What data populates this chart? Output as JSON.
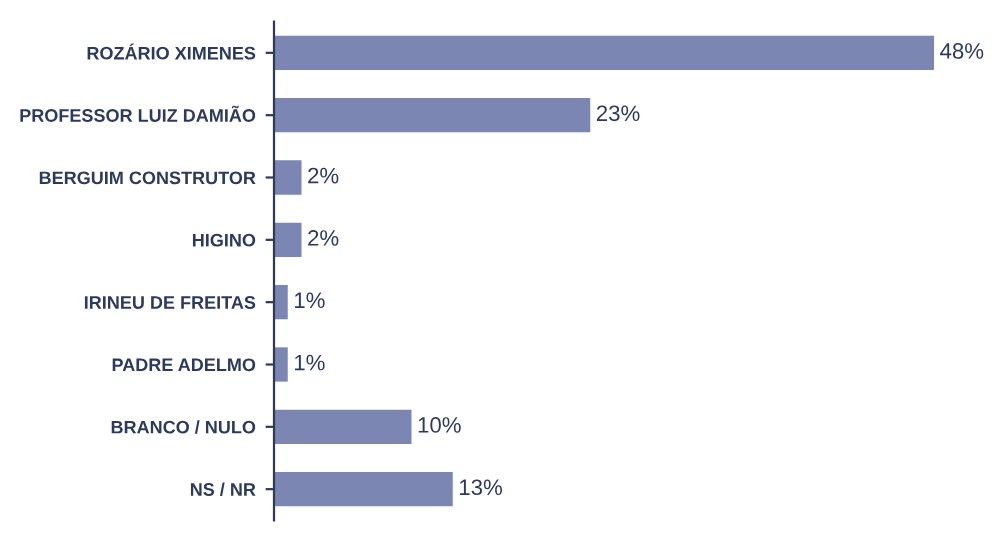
{
  "chart_data": {
    "type": "bar",
    "orientation": "horizontal",
    "categories": [
      "ROZÁRIO XIMENES",
      "PROFESSOR LUIZ DAMIÃO",
      "BERGUIM CONSTRUTOR",
      "HIGINO",
      "IRINEU DE FREITAS",
      "PADRE ADELMO",
      "BRANCO / NULO",
      "NS / NR"
    ],
    "values": [
      48,
      23,
      2,
      2,
      1,
      1,
      10,
      13
    ],
    "value_labels": [
      "48%",
      "23%",
      "2%",
      "2%",
      "1%",
      "1%",
      "10%",
      "13%"
    ],
    "color": "#7b86b3",
    "grid": false,
    "legend": false
  }
}
